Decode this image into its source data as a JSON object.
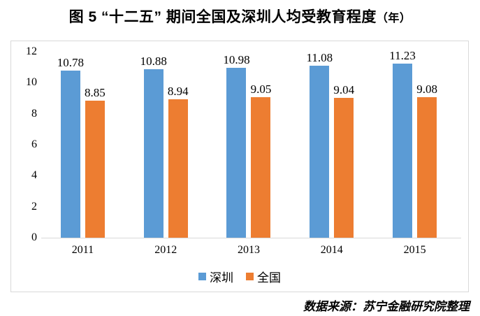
{
  "title": {
    "main": "图 5 “十二五” 期间全国及深圳人均受教育程度",
    "suffix": "（年）"
  },
  "chart_data": {
    "type": "bar",
    "title": "图 5 “十二五” 期间全国及深圳人均受教育程度（年）",
    "categories": [
      "2011",
      "2012",
      "2013",
      "2014",
      "2015"
    ],
    "series": [
      {
        "name": "深圳",
        "color": "#5B9BD5",
        "values": [
          10.78,
          10.88,
          10.98,
          11.08,
          11.23
        ]
      },
      {
        "name": "全国",
        "color": "#ED7D31",
        "values": [
          8.85,
          8.94,
          9.05,
          9.04,
          9.08
        ]
      }
    ],
    "ylim": [
      0,
      12
    ],
    "yticks": [
      0,
      2,
      4,
      6,
      8,
      10,
      12
    ],
    "xlabel": "",
    "ylabel": "",
    "grid": false,
    "legend_position": "bottom",
    "value_labels": true,
    "value_label_format": "2-decimals"
  },
  "source_note": "数据来源：苏宁金融研究院整理"
}
